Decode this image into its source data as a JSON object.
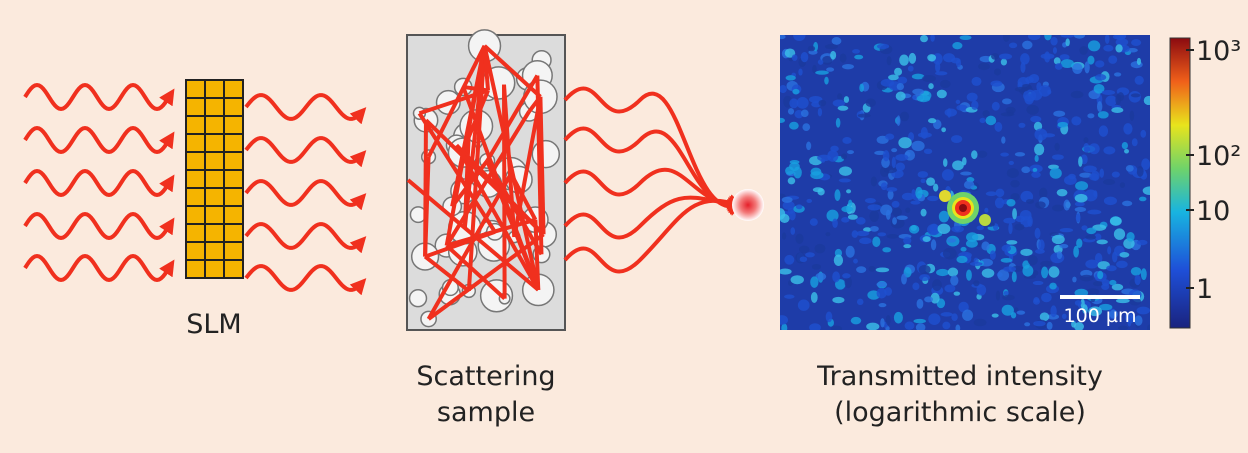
{
  "slm_label": "SLM",
  "sample_label": [
    "Scattering",
    "sample"
  ],
  "image_label": [
    "Transmitted intensity",
    "(logarithmic scale)"
  ],
  "scale_bar": "100 µm",
  "colorbar": {
    "ticks": [
      "10³",
      "10²",
      "10",
      "1"
    ]
  }
}
